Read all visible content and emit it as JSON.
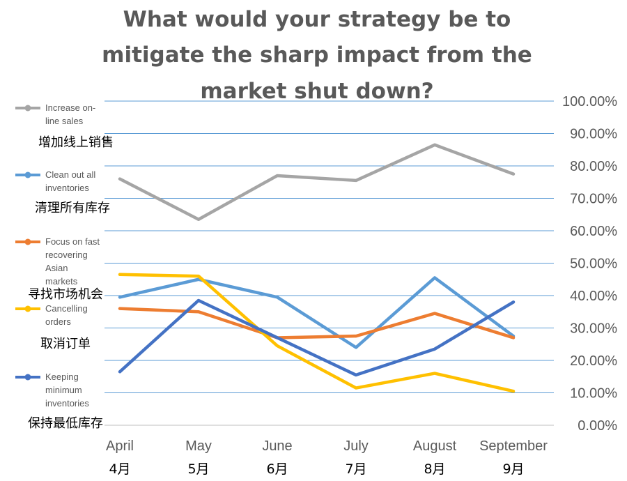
{
  "chart_data": {
    "type": "line",
    "title_lines": [
      "What would your strategy be to",
      "mitigate the sharp impact from the",
      "market shut down?"
    ],
    "subtitle": "",
    "xlabel": "",
    "ylabel": "",
    "categories": [
      "April",
      "May",
      "June",
      "July",
      "August",
      "September"
    ],
    "categories_cn": [
      "4月",
      "5月",
      "6月",
      "7月",
      "8月",
      "9月"
    ],
    "ylim": [
      0,
      1
    ],
    "yticks": [
      "0.00%",
      "10.00%",
      "20.00%",
      "30.00%",
      "40.00%",
      "50.00%",
      "60.00%",
      "70.00%",
      "80.00%",
      "90.00%",
      "100.00%"
    ],
    "y_axis_side": "right",
    "grid": true,
    "legend_position": "left",
    "series": [
      {
        "name": "Increase on-line sales",
        "name_lines": [
          "Increase on-",
          "line sales"
        ],
        "name_cn": "增加线上销售",
        "color": "#a5a5a5",
        "values": [
          0.76,
          0.635,
          0.77,
          0.755,
          0.865,
          0.775
        ]
      },
      {
        "name": "Clean out all inventories",
        "name_lines": [
          "Clean out all",
          "inventories"
        ],
        "name_cn": "清理所有库存",
        "color": "#5b9bd5",
        "values": [
          0.395,
          0.45,
          0.395,
          0.24,
          0.455,
          0.275
        ]
      },
      {
        "name": "Focus on fast recovering Asian markets",
        "name_lines": [
          "Focus on fast",
          "recovering",
          "Asian",
          "markets"
        ],
        "name_cn": "寻找市场机会",
        "color": "#ed7d31",
        "values": [
          0.36,
          0.35,
          0.27,
          0.275,
          0.345,
          0.27
        ]
      },
      {
        "name": "Cancelling orders",
        "name_lines": [
          "Cancelling",
          "orders"
        ],
        "name_cn": "取消订单",
        "color": "#ffc000",
        "values": [
          0.465,
          0.46,
          0.245,
          0.115,
          0.16,
          0.105
        ]
      },
      {
        "name": "Keeping minimum inventories",
        "name_lines": [
          "Keeping",
          "minimum",
          "inventories"
        ],
        "name_cn": "保持最低库存",
        "color": "#4472c4",
        "values": [
          0.165,
          0.385,
          0.27,
          0.155,
          0.235,
          0.38
        ]
      }
    ]
  }
}
